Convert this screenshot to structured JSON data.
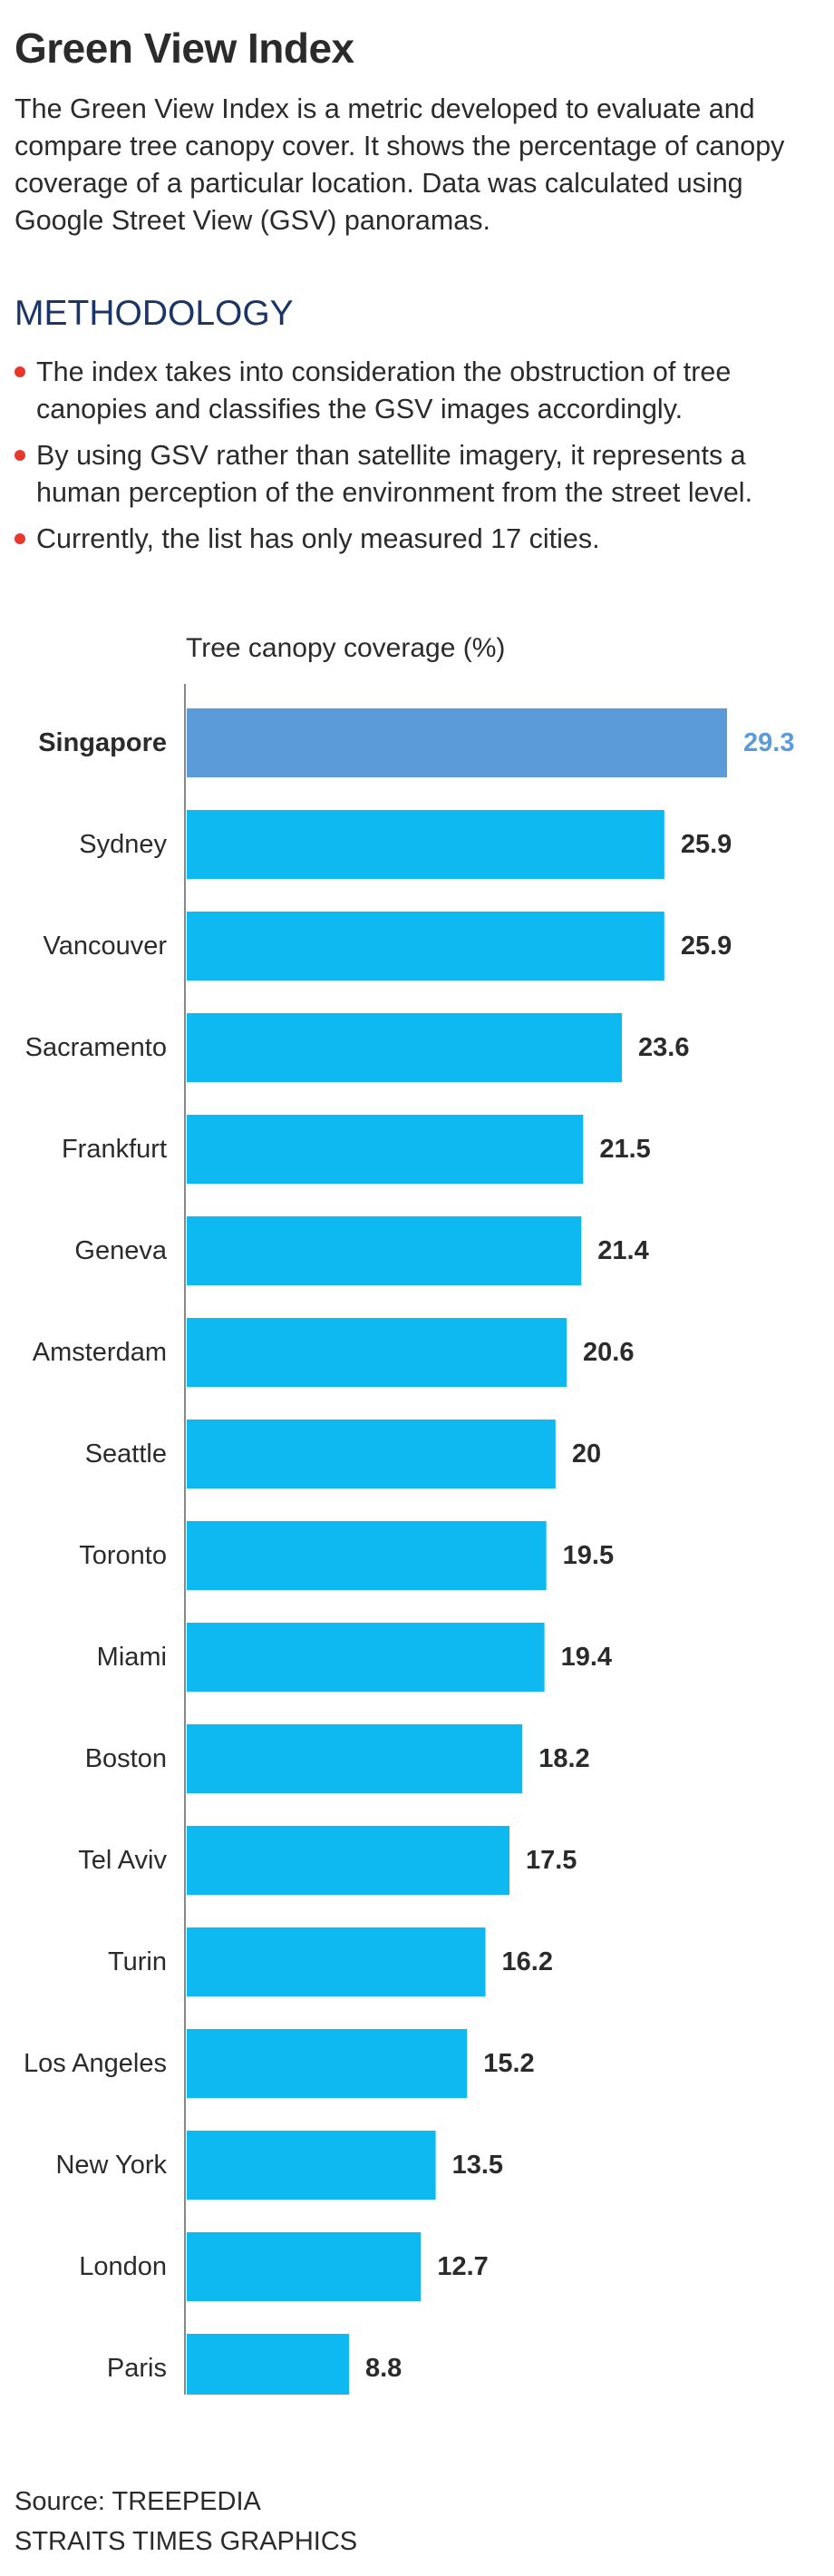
{
  "header": {
    "title": "Green View Index",
    "intro": "The Green View Index is a metric developed to evaluate and compare tree canopy cover. It shows the percentage of canopy coverage of a particular location. Data was calculated using Google Street View (GSV) panoramas."
  },
  "methodology": {
    "heading": "METHODOLOGY",
    "bullets": [
      "The index takes into consideration the obstruction of tree canopies and classifies the GSV images accordingly.",
      "By using GSV rather than satellite imagery, it represents a human perception of the environment from the street level.",
      "Currently, the list has only measured 17 cities."
    ],
    "bullet_color": "#e8372b"
  },
  "chart_data": {
    "type": "bar",
    "orientation": "horizontal",
    "title": "",
    "xlabel": "Tree canopy coverage (%)",
    "ylabel": "",
    "xlim": [
      0,
      29.3
    ],
    "grid": false,
    "highlight": "Singapore",
    "categories": [
      "Singapore",
      "Sydney",
      "Vancouver",
      "Sacramento",
      "Frankfurt",
      "Geneva",
      "Amsterdam",
      "Seattle",
      "Toronto",
      "Miami",
      "Boston",
      "Tel Aviv",
      "Turin",
      "Los Angeles",
      "New York",
      "London",
      "Paris"
    ],
    "values": [
      29.3,
      25.9,
      25.9,
      23.6,
      21.5,
      21.4,
      20.6,
      20,
      19.5,
      19.4,
      18.2,
      17.5,
      16.2,
      15.2,
      13.5,
      12.7,
      8.8
    ],
    "value_labels": [
      "29.3",
      "25.9",
      "25.9",
      "23.6",
      "21.5",
      "21.4",
      "20.6",
      "20",
      "19.5",
      "19.4",
      "18.2",
      "17.5",
      "16.2",
      "15.2",
      "13.5",
      "12.7",
      "8.8"
    ],
    "colors": {
      "bar": "#0db9f0",
      "highlight_bar": "#5b9bd9",
      "highlight_label": "#5b9bd9",
      "axis": "#888888",
      "text": "#2b2b2b"
    }
  },
  "footer": {
    "source": "Source: TREEPEDIA",
    "credit": "STRAITS TIMES GRAPHICS"
  }
}
